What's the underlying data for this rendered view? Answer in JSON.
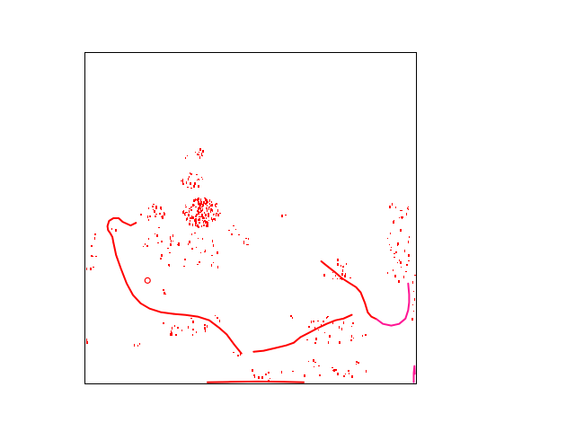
{
  "chart_data": {
    "type": "scatter",
    "title": "",
    "xlabel": "",
    "ylabel": "",
    "xlim": [
      0,
      100
    ],
    "ylim": [
      0,
      100
    ],
    "axes_visible": false,
    "grid": false,
    "frame": true,
    "colors": {
      "primary": "#ff0000",
      "secondary": "#ff1493",
      "frame": "#000000",
      "background": "#ffffff"
    },
    "curves": [
      {
        "name": "",
        "color": "#ff0000",
        "points": [
          [
            8.6,
            42.7
          ],
          [
            8.3,
            44.3
          ],
          [
            7.7,
            45.4
          ],
          [
            7.0,
            46.4
          ],
          [
            6.8,
            47.6
          ],
          [
            7.3,
            49.2
          ],
          [
            8.6,
            50.0
          ],
          [
            10.2,
            50.0
          ],
          [
            11.4,
            48.9
          ],
          [
            13.8,
            47.8
          ],
          [
            15.4,
            48.6
          ]
        ]
      },
      {
        "name": "",
        "color": "#ff0000",
        "points": [
          [
            8.6,
            42.7
          ],
          [
            9.4,
            38.9
          ],
          [
            10.8,
            34.9
          ],
          [
            12.6,
            30.3
          ],
          [
            14.5,
            26.8
          ],
          [
            16.8,
            24.3
          ],
          [
            19.5,
            22.7
          ],
          [
            23.0,
            21.6
          ],
          [
            26.8,
            21.1
          ]
        ]
      },
      {
        "name": "",
        "color": "#ff0000",
        "points": [
          [
            26.8,
            21.1
          ],
          [
            30.4,
            20.8
          ],
          [
            34.0,
            20.3
          ],
          [
            37.5,
            19.2
          ],
          [
            40.4,
            17.0
          ],
          [
            42.8,
            14.9
          ],
          [
            45.0,
            11.9
          ],
          [
            47.2,
            9.2
          ]
        ]
      },
      {
        "name": "",
        "color": "#ff0000",
        "points": [
          [
            50.9,
            9.7
          ],
          [
            53.9,
            10.0
          ],
          [
            57.4,
            10.8
          ],
          [
            60.7,
            11.6
          ],
          [
            63.0,
            12.4
          ],
          [
            65.0,
            14.1
          ],
          [
            67.5,
            15.4
          ],
          [
            70.2,
            16.8
          ],
          [
            72.9,
            18.1
          ],
          [
            75.6,
            19.2
          ],
          [
            78.0,
            19.7
          ],
          [
            80.5,
            20.8
          ]
        ]
      },
      {
        "name": "",
        "color": "#ff0000",
        "points": [
          [
            71.3,
            37.0
          ],
          [
            72.9,
            35.7
          ],
          [
            75.3,
            33.8
          ],
          [
            77.5,
            31.9
          ],
          [
            80.0,
            30.3
          ],
          [
            81.8,
            29.2
          ],
          [
            83.2,
            27.6
          ],
          [
            84.5,
            24.3
          ],
          [
            85.3,
            21.6
          ],
          [
            86.4,
            20.3
          ],
          [
            88.0,
            19.5
          ]
        ]
      },
      {
        "name": "",
        "color": "#ff1493",
        "points": [
          [
            88.0,
            19.5
          ],
          [
            89.9,
            18.1
          ],
          [
            92.4,
            17.6
          ],
          [
            94.8,
            18.1
          ],
          [
            96.7,
            19.7
          ],
          [
            97.5,
            22.2
          ],
          [
            97.8,
            24.6
          ],
          [
            97.8,
            27.0
          ],
          [
            97.5,
            30.3
          ]
        ]
      },
      {
        "name": "",
        "color": "#ff1493",
        "points": [
          [
            99.2,
            0.5
          ],
          [
            99.2,
            3.2
          ],
          [
            99.4,
            5.4
          ],
          [
            99.5,
            3.0
          ]
        ]
      },
      {
        "name": "",
        "color": "#ff0000",
        "points": [
          [
            37.0,
            0.5
          ],
          [
            44.0,
            0.6
          ],
          [
            52.0,
            0.7
          ],
          [
            60.0,
            0.6
          ],
          [
            66.0,
            0.5
          ]
        ]
      }
    ],
    "clusters": [
      {
        "name": "",
        "color": "#ff0000",
        "center": [
          35.0,
          52.0
        ],
        "radius": [
          5.5,
          4.5
        ],
        "count": 150
      },
      {
        "name": "",
        "color": "#ff0000",
        "center": [
          20.5,
          52.0
        ],
        "radius": [
          4.0,
          2.5
        ],
        "count": 22
      },
      {
        "name": "",
        "color": "#ff0000",
        "center": [
          32.0,
          61.5
        ],
        "radius": [
          3.5,
          2.5
        ],
        "count": 22
      },
      {
        "name": "",
        "color": "#ff0000",
        "center": [
          34.8,
          69.2
        ],
        "radius": [
          1.5,
          1.0
        ],
        "count": 8
      },
      {
        "name": "",
        "color": "#ff0000",
        "center": [
          30.0,
          41.0
        ],
        "radius": [
          10.0,
          6.0
        ],
        "count": 28
      },
      {
        "name": "",
        "color": "#ff0000",
        "center": [
          30.0,
          17.0
        ],
        "radius": [
          8.0,
          3.0
        ],
        "count": 20
      },
      {
        "name": "",
        "color": "#ff0000",
        "center": [
          75.0,
          16.0
        ],
        "radius": [
          10.0,
          5.0
        ],
        "count": 30
      },
      {
        "name": "",
        "color": "#ff0000",
        "center": [
          76.0,
          34.0
        ],
        "radius": [
          5.0,
          4.0
        ],
        "count": 18
      },
      {
        "name": "",
        "color": "#ff0000",
        "center": [
          94.0,
          41.0
        ],
        "radius": [
          4.0,
          10.0
        ],
        "count": 30
      },
      {
        "name": "",
        "color": "#ff0000",
        "center": [
          96.0,
          52.0
        ],
        "radius": [
          2.0,
          2.5
        ],
        "count": 10
      },
      {
        "name": "",
        "color": "#ff0000",
        "center": [
          75.0,
          5.0
        ],
        "radius": [
          12.0,
          3.0
        ],
        "count": 20
      },
      {
        "name": "",
        "color": "#ff0000",
        "center": [
          57.0,
          3.0
        ],
        "radius": [
          10.0,
          2.0
        ],
        "count": 12
      },
      {
        "name": "",
        "color": "#ff0000",
        "center": [
          48.5,
          43.0
        ],
        "radius": [
          1.5,
          1.5
        ],
        "count": 6
      },
      {
        "name": "",
        "color": "#ff0000",
        "center": [
          27.0,
          43.0
        ],
        "radius": [
          2.0,
          2.5
        ],
        "count": 8
      },
      {
        "name": "",
        "color": "#ff0000",
        "center": [
          2.0,
          35.0
        ],
        "radius": [
          1.5,
          15.0
        ],
        "count": 6
      },
      {
        "name": "",
        "color": "#ff0000",
        "center": [
          45.0,
          46.0
        ],
        "radius": [
          2.0,
          2.0
        ],
        "count": 5
      }
    ],
    "points": [
      [
        0.5,
        35.0
      ],
      [
        1.5,
        35.1
      ],
      [
        2.4,
        35.3
      ],
      [
        0.3,
        12.9
      ],
      [
        0.4,
        13.8
      ],
      [
        59.2,
        51.1
      ],
      [
        60.3,
        51.1
      ],
      [
        39.2,
        20.6
      ],
      [
        39.8,
        20.1
      ],
      [
        40.5,
        19.5
      ],
      [
        61.8,
        20.8
      ],
      [
        62.5,
        20.3
      ],
      [
        23.5,
        28.6
      ],
      [
        23.8,
        27.8
      ],
      [
        24.1,
        27.3
      ],
      [
        33.3,
        70.0
      ],
      [
        35.3,
        70.5
      ],
      [
        34.5,
        71.1
      ],
      [
        30.2,
        68.4
      ],
      [
        30.8,
        68.9
      ],
      [
        91.6,
        53.8
      ],
      [
        92.6,
        54.6
      ],
      [
        93.5,
        53.5
      ],
      [
        98.5,
        20.0
      ],
      [
        99.0,
        22.0
      ],
      [
        98.8,
        24.0
      ],
      [
        99.2,
        26.0
      ],
      [
        99.0,
        28.0
      ],
      [
        98.7,
        31.0
      ],
      [
        99.3,
        33.0
      ],
      [
        44.7,
        9.5
      ],
      [
        46.0,
        8.9
      ],
      [
        46.8,
        9.4
      ],
      [
        33.8,
        36.2
      ],
      [
        34.3,
        37.0
      ],
      [
        38.0,
        36.2
      ],
      [
        38.7,
        36.8
      ],
      [
        40.1,
        35.7
      ],
      [
        17.5,
        41.6
      ],
      [
        17.9,
        42.4
      ],
      [
        18.5,
        41.9
      ],
      [
        20.9,
        45.4
      ],
      [
        21.5,
        45.1
      ],
      [
        22.2,
        47.3
      ],
      [
        19.0,
        44.1
      ],
      [
        14.8,
        12.1
      ],
      [
        15.8,
        11.8
      ],
      [
        16.5,
        12.3
      ],
      [
        8.0,
        47.0
      ],
      [
        9.0,
        46.7
      ]
    ]
  }
}
